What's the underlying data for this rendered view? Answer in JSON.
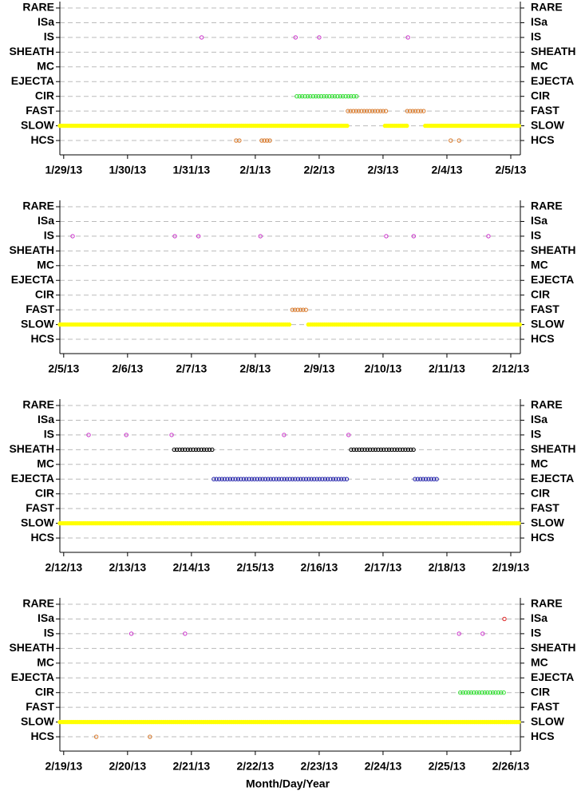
{
  "chart_data": [
    {
      "type": "scatter",
      "categories": [
        "RARE",
        "ISa",
        "IS",
        "SHEATH",
        "MC",
        "EJECTA",
        "CIR",
        "FAST",
        "SLOW",
        "HCS"
      ],
      "xlim": [
        -0.06,
        7.15
      ],
      "xticks": [
        {
          "value": 0,
          "label": "1/29/13"
        },
        {
          "value": 1,
          "label": "1/30/13"
        },
        {
          "value": 2,
          "label": "1/31/13"
        },
        {
          "value": 3,
          "label": "2/1/13"
        },
        {
          "value": 4,
          "label": "2/2/13"
        },
        {
          "value": 5,
          "label": "2/3/13"
        },
        {
          "value": 6,
          "label": "2/4/13"
        },
        {
          "value": 7,
          "label": "2/5/13"
        }
      ],
      "rows": [
        {
          "points": [],
          "runs": []
        },
        {
          "points": [],
          "runs": []
        },
        {
          "color": "#cc33cc",
          "points": [
            2.16,
            3.63,
            4.0,
            5.39
          ],
          "runs": []
        },
        {
          "points": [],
          "runs": []
        },
        {
          "points": [],
          "runs": []
        },
        {
          "points": [],
          "runs": []
        },
        {
          "color": "#33e033",
          "points": [],
          "runs": [
            [
              3.65,
              4.61
            ]
          ]
        },
        {
          "color": "#d97a2b",
          "points": [],
          "runs": [
            [
              4.45,
              5.05
            ],
            [
              5.38,
              5.66
            ]
          ]
        },
        {
          "color": "#ffff00",
          "points": [],
          "runs": [
            [
              -0.06,
              4.45
            ],
            [
              5.03,
              5.38
            ],
            [
              5.66,
              7.15
            ]
          ]
        },
        {
          "color": "#d97a2b",
          "points": [
            2.7,
            2.75,
            6.06,
            6.19
          ],
          "runs": [
            [
              3.1,
              3.26
            ]
          ]
        }
      ]
    },
    {
      "type": "scatter",
      "categories": [
        "RARE",
        "ISa",
        "IS",
        "SHEATH",
        "MC",
        "EJECTA",
        "CIR",
        "FAST",
        "SLOW",
        "HCS"
      ],
      "xlim": [
        -0.06,
        7.15
      ],
      "xticks": [
        {
          "value": 0,
          "label": "2/5/13"
        },
        {
          "value": 1,
          "label": "2/6/13"
        },
        {
          "value": 2,
          "label": "2/7/13"
        },
        {
          "value": 3,
          "label": "2/8/13"
        },
        {
          "value": 4,
          "label": "2/9/13"
        },
        {
          "value": 5,
          "label": "2/10/13"
        },
        {
          "value": 6,
          "label": "2/11/13"
        },
        {
          "value": 7,
          "label": "2/12/13"
        }
      ],
      "rows": [
        {
          "points": [],
          "runs": []
        },
        {
          "points": [],
          "runs": []
        },
        {
          "color": "#cc33cc",
          "points": [
            0.14,
            1.74,
            2.11,
            3.08,
            5.05,
            5.48,
            6.65
          ],
          "runs": []
        },
        {
          "points": [],
          "runs": []
        },
        {
          "points": [],
          "runs": []
        },
        {
          "points": [],
          "runs": []
        },
        {
          "points": [],
          "runs": []
        },
        {
          "color": "#d97a2b",
          "points": [],
          "runs": [
            [
              3.58,
              3.8
            ]
          ]
        },
        {
          "color": "#ffff00",
          "points": [],
          "runs": [
            [
              -0.06,
              3.55
            ],
            [
              3.83,
              7.15
            ]
          ]
        },
        {
          "points": [],
          "runs": []
        }
      ]
    },
    {
      "type": "scatter",
      "categories": [
        "RARE",
        "ISa",
        "IS",
        "SHEATH",
        "MC",
        "EJECTA",
        "CIR",
        "FAST",
        "SLOW",
        "HCS"
      ],
      "xlim": [
        -0.06,
        7.15
      ],
      "xticks": [
        {
          "value": 0,
          "label": "2/12/13"
        },
        {
          "value": 1,
          "label": "2/13/13"
        },
        {
          "value": 2,
          "label": "2/14/13"
        },
        {
          "value": 3,
          "label": "2/15/13"
        },
        {
          "value": 4,
          "label": "2/16/13"
        },
        {
          "value": 5,
          "label": "2/17/13"
        },
        {
          "value": 6,
          "label": "2/18/13"
        },
        {
          "value": 7,
          "label": "2/19/13"
        }
      ],
      "rows": [
        {
          "points": [],
          "runs": []
        },
        {
          "points": [],
          "runs": []
        },
        {
          "color": "#cc33cc",
          "points": [
            0.39,
            0.98,
            1.69,
            3.45,
            4.46
          ],
          "runs": []
        },
        {
          "color": "#000000",
          "points": [],
          "runs": [
            [
              1.73,
              2.35
            ],
            [
              4.5,
              5.5
            ]
          ]
        },
        {
          "points": [],
          "runs": []
        },
        {
          "color": "#2222aa",
          "points": [],
          "runs": [
            [
              2.35,
              4.45
            ],
            [
              5.5,
              5.86
            ]
          ]
        },
        {
          "points": [],
          "runs": []
        },
        {
          "points": [],
          "runs": []
        },
        {
          "color": "#ffff00",
          "points": [],
          "runs": [
            [
              -0.06,
              7.15
            ]
          ]
        },
        {
          "points": [],
          "runs": []
        }
      ]
    },
    {
      "type": "scatter",
      "categories": [
        "RARE",
        "ISa",
        "IS",
        "SHEATH",
        "MC",
        "EJECTA",
        "CIR",
        "FAST",
        "SLOW",
        "HCS"
      ],
      "xlim": [
        -0.06,
        7.15
      ],
      "xticks": [
        {
          "value": 0,
          "label": "2/19/13"
        },
        {
          "value": 1,
          "label": "2/20/13"
        },
        {
          "value": 2,
          "label": "2/21/13"
        },
        {
          "value": 3,
          "label": "2/22/13"
        },
        {
          "value": 4,
          "label": "2/23/13"
        },
        {
          "value": 5,
          "label": "2/24/13"
        },
        {
          "value": 6,
          "label": "2/25/13"
        },
        {
          "value": 7,
          "label": "2/26/13"
        }
      ],
      "xlabel": "Month/Day/Year",
      "rows": [
        {
          "points": [],
          "runs": []
        },
        {
          "color": "#dd2222",
          "points": [
            6.9
          ],
          "runs": []
        },
        {
          "color": "#cc33cc",
          "points": [
            1.06,
            1.9,
            6.19,
            6.56
          ],
          "runs": []
        },
        {
          "points": [],
          "runs": []
        },
        {
          "points": [],
          "runs": []
        },
        {
          "points": [],
          "runs": []
        },
        {
          "color": "#33e033",
          "points": [],
          "runs": [
            [
              6.21,
              6.89
            ]
          ]
        },
        {
          "points": [],
          "runs": []
        },
        {
          "color": "#ffff00",
          "points": [],
          "runs": [
            [
              -0.06,
              7.15
            ]
          ]
        },
        {
          "color": "#d97a2b",
          "points": [
            0.51,
            1.35
          ],
          "runs": []
        }
      ]
    }
  ]
}
